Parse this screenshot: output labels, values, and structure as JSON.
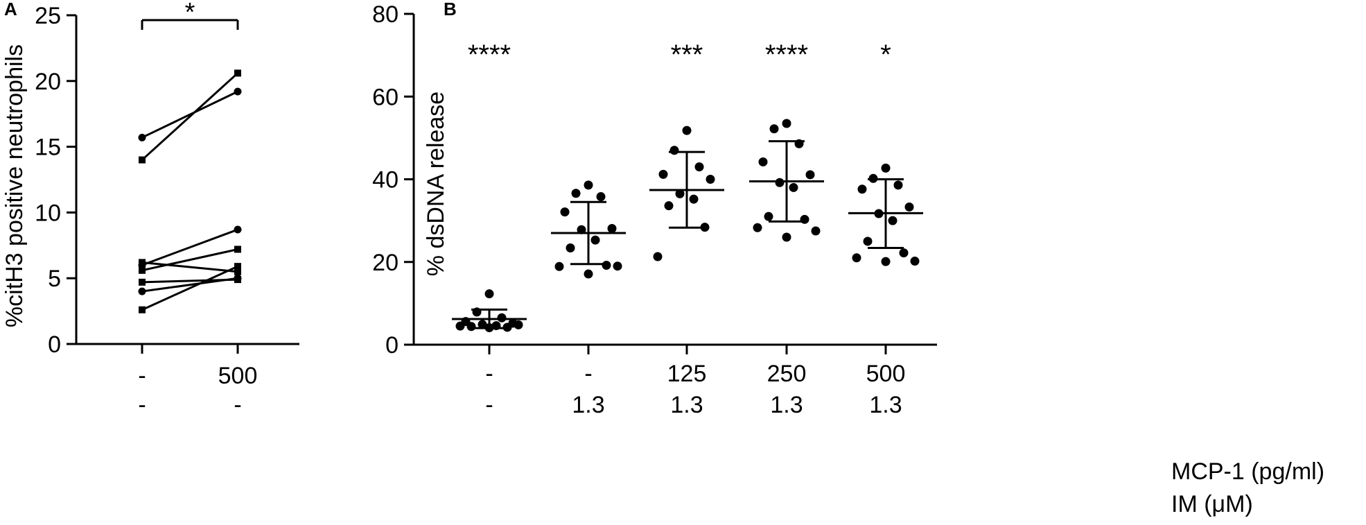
{
  "chart_data": [
    {
      "type": "scatter",
      "panel_label": "A",
      "ylabel": "%citH3 positive neutrophils",
      "ylim": [
        0,
        25
      ],
      "yticks": [
        0,
        5,
        10,
        15,
        20,
        25
      ],
      "categories": [
        "-",
        "500"
      ],
      "row2_labels": [
        "-",
        "-"
      ],
      "significance": {
        "label": "*",
        "from": 0,
        "to": 1
      },
      "pairs": [
        {
          "start": 15.7,
          "end": 19.2,
          "marker": "circle"
        },
        {
          "start": 14.0,
          "end": 20.6,
          "marker": "square"
        },
        {
          "start": 6.2,
          "end": 5.5,
          "marker": "square"
        },
        {
          "start": 6.0,
          "end": 8.7,
          "marker": "circle"
        },
        {
          "start": 5.6,
          "end": 7.2,
          "marker": "square"
        },
        {
          "start": 4.7,
          "end": 4.9,
          "marker": "square"
        },
        {
          "start": 4.0,
          "end": 5.0,
          "marker": "circle"
        },
        {
          "start": 2.6,
          "end": 5.9,
          "marker": "square"
        }
      ]
    },
    {
      "type": "scatter",
      "panel_label": "B",
      "ylabel": "% dsDNA release",
      "ylim": [
        0,
        80
      ],
      "yticks": [
        0,
        20,
        40,
        60,
        80
      ],
      "row1_labels": [
        "-",
        "-",
        "125",
        "250",
        "500"
      ],
      "row1_title": "MCP-1 (pg/ml)",
      "row2_labels": [
        "-",
        "1.3",
        "1.3",
        "1.3",
        "1.3"
      ],
      "row2_title": "IM (μM)",
      "groups": [
        {
          "stars": "****",
          "mean": 6.2,
          "sd_low": 4.0,
          "sd_high": 8.5,
          "points": [
            12.3,
            7.9,
            6.5,
            5.6,
            5.2,
            4.9,
            4.6,
            4.4,
            4.2,
            4.5,
            4.8,
            4.1
          ]
        },
        {
          "stars": "",
          "mean": 27.0,
          "sd_low": 19.5,
          "sd_high": 34.5,
          "points": [
            38.6,
            36.6,
            35.8,
            32.1,
            28.1,
            27.8,
            25.3,
            23.4,
            19.2,
            18.9,
            19.0,
            17.1
          ]
        },
        {
          "stars": "***",
          "mean": 37.4,
          "sd_low": 28.3,
          "sd_high": 46.6,
          "points": [
            51.8,
            47.0,
            43.0,
            41.2,
            40.0,
            36.5,
            35.2,
            33.6,
            28.4,
            21.3
          ]
        },
        {
          "stars": "****",
          "mean": 39.5,
          "sd_low": 29.8,
          "sd_high": 49.2,
          "points": [
            53.5,
            52.2,
            48.6,
            44.2,
            41.1,
            39.2,
            38.0,
            31.0,
            30.3,
            28.3,
            27.5,
            26.0
          ]
        },
        {
          "stars": "*",
          "mean": 31.8,
          "sd_low": 23.4,
          "sd_high": 40.0,
          "points": [
            42.7,
            40.2,
            38.6,
            37.6,
            33.3,
            31.7,
            30.0,
            25.0,
            22.2,
            21.0,
            20.2,
            20.1
          ]
        }
      ]
    }
  ]
}
